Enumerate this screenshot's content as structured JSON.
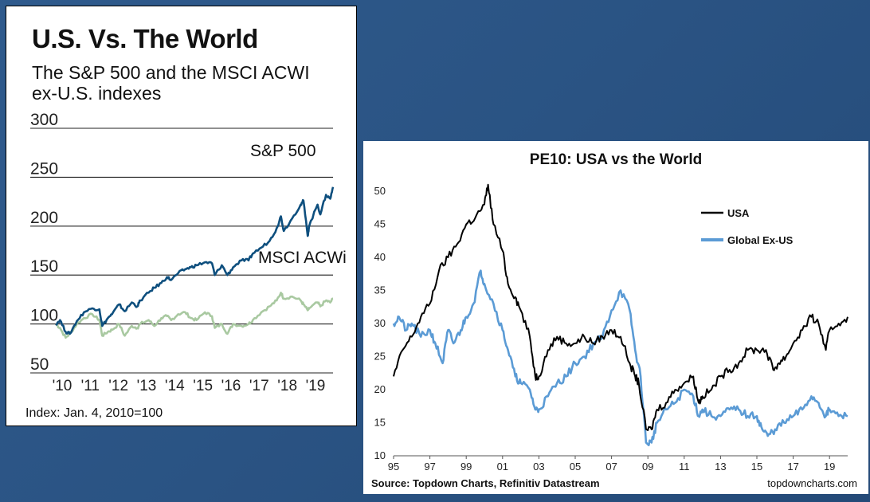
{
  "left": {
    "title": "U.S. Vs. The World",
    "subtitle_line1": "The S&P 500 and the MSCI ACWI",
    "subtitle_line2": "ex-U.S. indexes",
    "note": "Index: Jan. 4, 2010=100",
    "chart_data": {
      "type": "line",
      "ylim": [
        50,
        300
      ],
      "yticks": [
        50,
        100,
        150,
        200,
        250,
        300
      ],
      "xlim": [
        2010,
        2019.85
      ],
      "xticks": [
        {
          "x": 2010,
          "label": "'10"
        },
        {
          "x": 2011,
          "label": "'11"
        },
        {
          "x": 2012,
          "label": "'12"
        },
        {
          "x": 2013,
          "label": "'13"
        },
        {
          "x": 2014,
          "label": "'14"
        },
        {
          "x": 2015,
          "label": "'15"
        },
        {
          "x": 2016,
          "label": "'16"
        },
        {
          "x": 2017,
          "label": "'17"
        },
        {
          "x": 2018,
          "label": "'18"
        },
        {
          "x": 2019,
          "label": "'19"
        }
      ],
      "series": [
        {
          "name": "S&P 500",
          "color": "#0e4f7e",
          "points": [
            [
              2010.0,
              100
            ],
            [
              2010.15,
              104
            ],
            [
              2010.35,
              92
            ],
            [
              2010.5,
              90
            ],
            [
              2010.75,
              103
            ],
            [
              2011.0,
              112
            ],
            [
              2011.3,
              116
            ],
            [
              2011.55,
              115
            ],
            [
              2011.65,
              98
            ],
            [
              2011.85,
              106
            ],
            [
              2012.0,
              110
            ],
            [
              2012.25,
              120
            ],
            [
              2012.45,
              113
            ],
            [
              2012.7,
              122
            ],
            [
              2012.9,
              118
            ],
            [
              2013.0,
              124
            ],
            [
              2013.3,
              132
            ],
            [
              2013.5,
              137
            ],
            [
              2013.75,
              142
            ],
            [
              2013.95,
              148
            ],
            [
              2014.1,
              145
            ],
            [
              2014.35,
              152
            ],
            [
              2014.6,
              156
            ],
            [
              2014.8,
              158
            ],
            [
              2015.0,
              160
            ],
            [
              2015.3,
              163
            ],
            [
              2015.55,
              162
            ],
            [
              2015.65,
              150
            ],
            [
              2015.9,
              160
            ],
            [
              2016.1,
              150
            ],
            [
              2016.3,
              158
            ],
            [
              2016.6,
              165
            ],
            [
              2016.85,
              165
            ],
            [
              2017.0,
              172
            ],
            [
              2017.3,
              178
            ],
            [
              2017.6,
              185
            ],
            [
              2017.85,
              198
            ],
            [
              2018.0,
              210
            ],
            [
              2018.1,
              195
            ],
            [
              2018.4,
              208
            ],
            [
              2018.7,
              222
            ],
            [
              2018.8,
              226
            ],
            [
              2018.95,
              190
            ],
            [
              2019.0,
              200
            ],
            [
              2019.3,
              222
            ],
            [
              2019.4,
              212
            ],
            [
              2019.6,
              232
            ],
            [
              2019.75,
              228
            ],
            [
              2019.85,
              240
            ]
          ]
        },
        {
          "name": "MSCI ACWi",
          "color": "#a9c9a1",
          "points": [
            [
              2010.0,
              100
            ],
            [
              2010.15,
              96
            ],
            [
              2010.35,
              86
            ],
            [
              2010.5,
              90
            ],
            [
              2010.75,
              100
            ],
            [
              2011.0,
              106
            ],
            [
              2011.3,
              110
            ],
            [
              2011.55,
              104
            ],
            [
              2011.65,
              88
            ],
            [
              2011.85,
              92
            ],
            [
              2012.0,
              94
            ],
            [
              2012.25,
              100
            ],
            [
              2012.45,
              88
            ],
            [
              2012.7,
              98
            ],
            [
              2012.9,
              96
            ],
            [
              2013.0,
              100
            ],
            [
              2013.3,
              104
            ],
            [
              2013.5,
              98
            ],
            [
              2013.75,
              106
            ],
            [
              2013.95,
              108
            ],
            [
              2014.1,
              104
            ],
            [
              2014.35,
              110
            ],
            [
              2014.6,
              112
            ],
            [
              2014.8,
              106
            ],
            [
              2015.0,
              104
            ],
            [
              2015.3,
              112
            ],
            [
              2015.55,
              108
            ],
            [
              2015.65,
              96
            ],
            [
              2015.9,
              100
            ],
            [
              2016.1,
              90
            ],
            [
              2016.3,
              100
            ],
            [
              2016.6,
              98
            ],
            [
              2016.85,
              100
            ],
            [
              2017.0,
              104
            ],
            [
              2017.3,
              112
            ],
            [
              2017.6,
              118
            ],
            [
              2017.85,
              124
            ],
            [
              2018.0,
              132
            ],
            [
              2018.1,
              126
            ],
            [
              2018.4,
              128
            ],
            [
              2018.7,
              124
            ],
            [
              2018.8,
              120
            ],
            [
              2018.95,
              114
            ],
            [
              2019.0,
              116
            ],
            [
              2019.3,
              122
            ],
            [
              2019.4,
              118
            ],
            [
              2019.6,
              124
            ],
            [
              2019.75,
              122
            ],
            [
              2019.85,
              126
            ]
          ]
        }
      ]
    }
  },
  "right": {
    "title": "PE10: USA vs the World",
    "source": "Source: Topdown Charts, Refinitiv Datastream",
    "site": "topdowncharts.com",
    "chart_data": {
      "type": "line",
      "ylim": [
        10,
        50
      ],
      "yticks": [
        10,
        15,
        20,
        25,
        30,
        35,
        40,
        45,
        50
      ],
      "xlim": [
        1995,
        2020
      ],
      "xticks": [
        {
          "x": 1995,
          "label": "95"
        },
        {
          "x": 1997,
          "label": "97"
        },
        {
          "x": 1999,
          "label": "99"
        },
        {
          "x": 2001,
          "label": "01"
        },
        {
          "x": 2003,
          "label": "03"
        },
        {
          "x": 2005,
          "label": "05"
        },
        {
          "x": 2007,
          "label": "07"
        },
        {
          "x": 2009,
          "label": "09"
        },
        {
          "x": 2011,
          "label": "11"
        },
        {
          "x": 2013,
          "label": "13"
        },
        {
          "x": 2015,
          "label": "15"
        },
        {
          "x": 2017,
          "label": "17"
        },
        {
          "x": 2019,
          "label": "19"
        }
      ],
      "legend_position": "top-right",
      "series": [
        {
          "name": "USA",
          "color": "#000000",
          "points": [
            [
              1995.0,
              22
            ],
            [
              1995.5,
              26
            ],
            [
              1996.0,
              28
            ],
            [
              1996.5,
              31
            ],
            [
              1997.0,
              33
            ],
            [
              1997.5,
              38
            ],
            [
              1998.0,
              40
            ],
            [
              1998.5,
              42
            ],
            [
              1999.0,
              45
            ],
            [
              1999.5,
              46
            ],
            [
              2000.0,
              48
            ],
            [
              2000.2,
              51
            ],
            [
              2000.5,
              45
            ],
            [
              2001.0,
              41
            ],
            [
              2001.3,
              36
            ],
            [
              2001.7,
              34
            ],
            [
              2002.0,
              32
            ],
            [
              2002.5,
              28
            ],
            [
              2002.8,
              22
            ],
            [
              2003.0,
              22
            ],
            [
              2003.5,
              26
            ],
            [
              2004.0,
              28
            ],
            [
              2004.5,
              27
            ],
            [
              2005.0,
              27
            ],
            [
              2005.5,
              28
            ],
            [
              2006.0,
              27
            ],
            [
              2006.5,
              28
            ],
            [
              2007.0,
              29
            ],
            [
              2007.5,
              28
            ],
            [
              2008.0,
              24
            ],
            [
              2008.3,
              22
            ],
            [
              2008.5,
              21
            ],
            [
              2008.9,
              14
            ],
            [
              2009.2,
              14
            ],
            [
              2009.5,
              17
            ],
            [
              2010.0,
              18
            ],
            [
              2010.5,
              20
            ],
            [
              2011.0,
              21
            ],
            [
              2011.5,
              22
            ],
            [
              2011.8,
              18
            ],
            [
              2012.0,
              19
            ],
            [
              2012.5,
              20
            ],
            [
              2013.0,
              22
            ],
            [
              2013.5,
              23
            ],
            [
              2014.0,
              24
            ],
            [
              2014.5,
              26
            ],
            [
              2015.0,
              26
            ],
            [
              2015.5,
              26
            ],
            [
              2015.9,
              23
            ],
            [
              2016.2,
              24
            ],
            [
              2016.6,
              25
            ],
            [
              2017.0,
              27
            ],
            [
              2017.5,
              29
            ],
            [
              2018.0,
              31
            ],
            [
              2018.4,
              30
            ],
            [
              2018.8,
              26
            ],
            [
              2019.0,
              29
            ],
            [
              2019.5,
              30
            ],
            [
              2020.0,
              31
            ]
          ]
        },
        {
          "name": "Global Ex-US",
          "color": "#5b9bd5",
          "points": [
            [
              1995.0,
              30
            ],
            [
              1995.3,
              31
            ],
            [
              1995.7,
              29
            ],
            [
              1996.0,
              30
            ],
            [
              1996.5,
              28
            ],
            [
              1997.0,
              29
            ],
            [
              1997.3,
              27
            ],
            [
              1997.7,
              24
            ],
            [
              1998.0,
              29
            ],
            [
              1998.3,
              27
            ],
            [
              1998.7,
              29
            ],
            [
              1999.0,
              31
            ],
            [
              1999.4,
              33
            ],
            [
              1999.8,
              38
            ],
            [
              2000.0,
              36
            ],
            [
              2000.5,
              33
            ],
            [
              2001.0,
              29
            ],
            [
              2001.3,
              26
            ],
            [
              2001.7,
              22
            ],
            [
              2002.0,
              21
            ],
            [
              2002.5,
              20
            ],
            [
              2002.8,
              17
            ],
            [
              2003.0,
              17
            ],
            [
              2003.5,
              19
            ],
            [
              2004.0,
              21
            ],
            [
              2004.5,
              22
            ],
            [
              2005.0,
              24
            ],
            [
              2005.5,
              25
            ],
            [
              2006.0,
              27
            ],
            [
              2006.5,
              28
            ],
            [
              2007.0,
              32
            ],
            [
              2007.5,
              35
            ],
            [
              2008.0,
              32
            ],
            [
              2008.3,
              26
            ],
            [
              2008.6,
              22
            ],
            [
              2008.9,
              12
            ],
            [
              2009.2,
              12
            ],
            [
              2009.5,
              15
            ],
            [
              2010.0,
              17
            ],
            [
              2010.5,
              18
            ],
            [
              2011.0,
              20
            ],
            [
              2011.5,
              19
            ],
            [
              2011.8,
              16
            ],
            [
              2012.0,
              17
            ],
            [
              2012.5,
              16
            ],
            [
              2013.0,
              16
            ],
            [
              2013.5,
              17
            ],
            [
              2014.0,
              17
            ],
            [
              2014.5,
              16
            ],
            [
              2015.0,
              16
            ],
            [
              2015.3,
              14
            ],
            [
              2015.6,
              13
            ],
            [
              2016.0,
              14
            ],
            [
              2016.5,
              15
            ],
            [
              2017.0,
              16
            ],
            [
              2017.5,
              17
            ],
            [
              2018.0,
              19
            ],
            [
              2018.4,
              18
            ],
            [
              2018.8,
              16
            ],
            [
              2019.0,
              17
            ],
            [
              2019.5,
              16
            ],
            [
              2020.0,
              16
            ]
          ]
        }
      ]
    }
  }
}
